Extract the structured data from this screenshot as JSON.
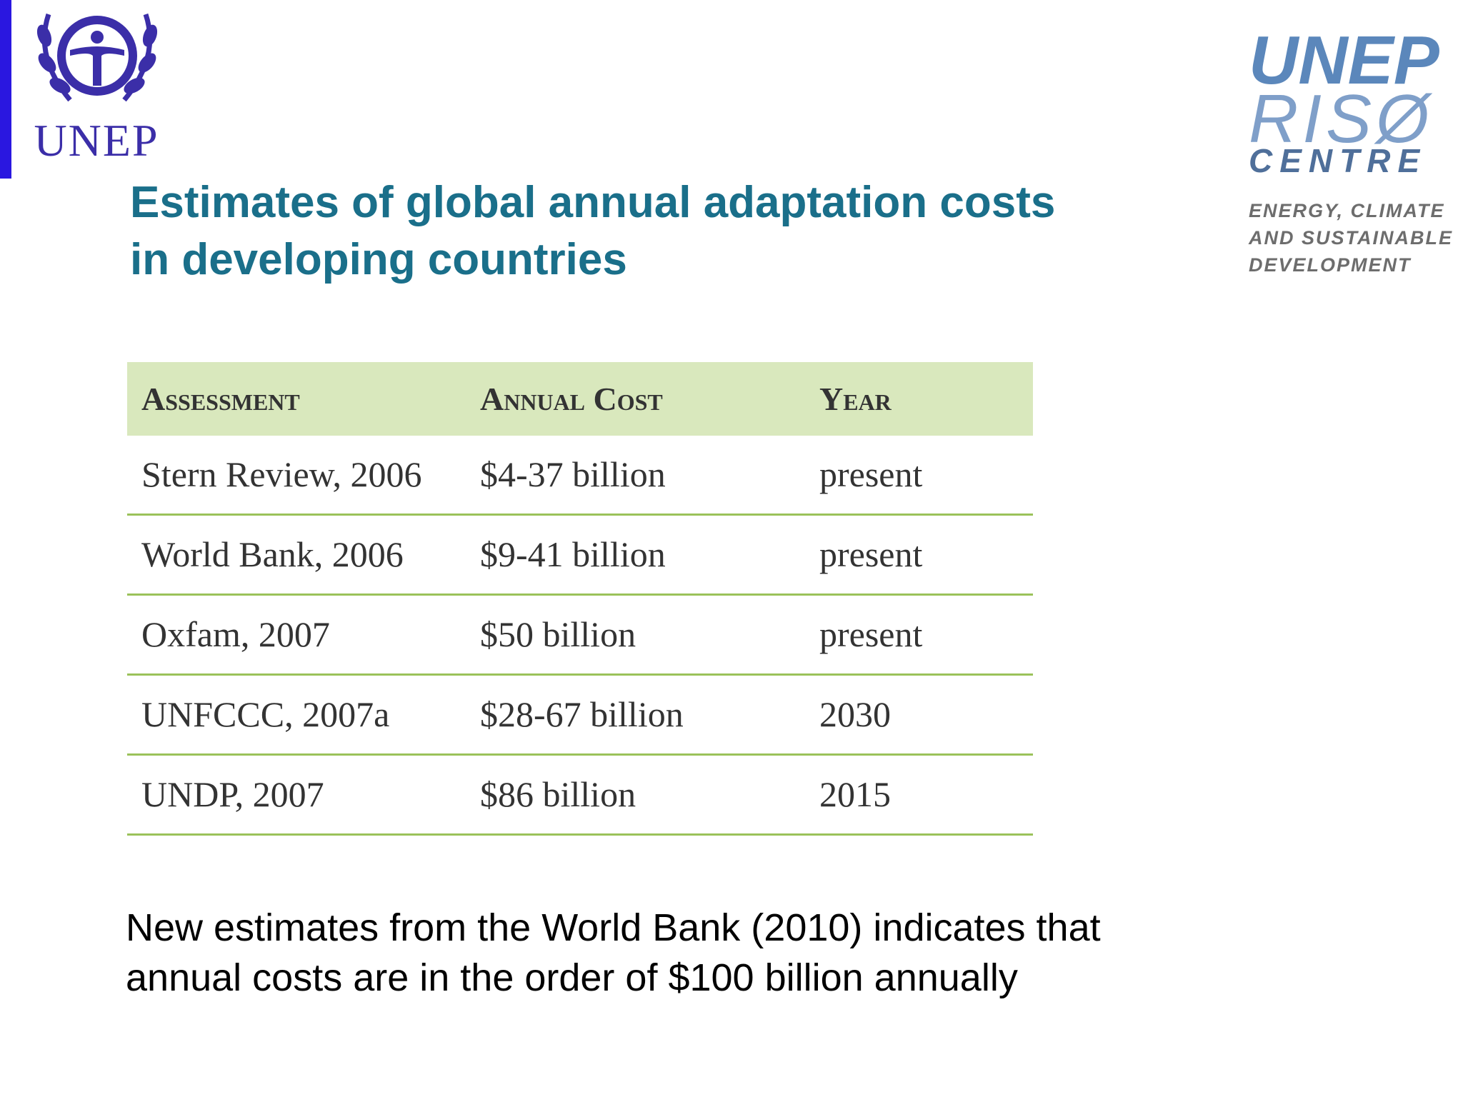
{
  "logo_left": {
    "text": "UNEP"
  },
  "logo_right": {
    "line1": "UNEP",
    "line2": "RISØ",
    "line3": "CENTRE",
    "tagline": [
      "ENERGY, CLIMATE",
      "AND SUSTAINABLE",
      "DEVELOPMENT"
    ]
  },
  "title": [
    "Estimates of global annual adaptation costs",
    "in developing countries"
  ],
  "table": {
    "header": [
      "Assessment",
      "Annual Cost",
      "Year"
    ],
    "rows": [
      [
        "Stern Review, 2006",
        "$4-37 billion",
        "present"
      ],
      [
        "World Bank, 2006",
        "$9-41 billion",
        "present"
      ],
      [
        "Oxfam, 2007",
        "$50 billion",
        "present"
      ],
      [
        "UNFCCC, 2007a",
        "$28-67 billion",
        "2030"
      ],
      [
        "UNDP, 2007",
        "$86 billion",
        "2015"
      ]
    ]
  },
  "note": [
    "New estimates from the World Bank (2010) indicates that",
    "annual costs are in the order of $100 billion annually"
  ]
}
